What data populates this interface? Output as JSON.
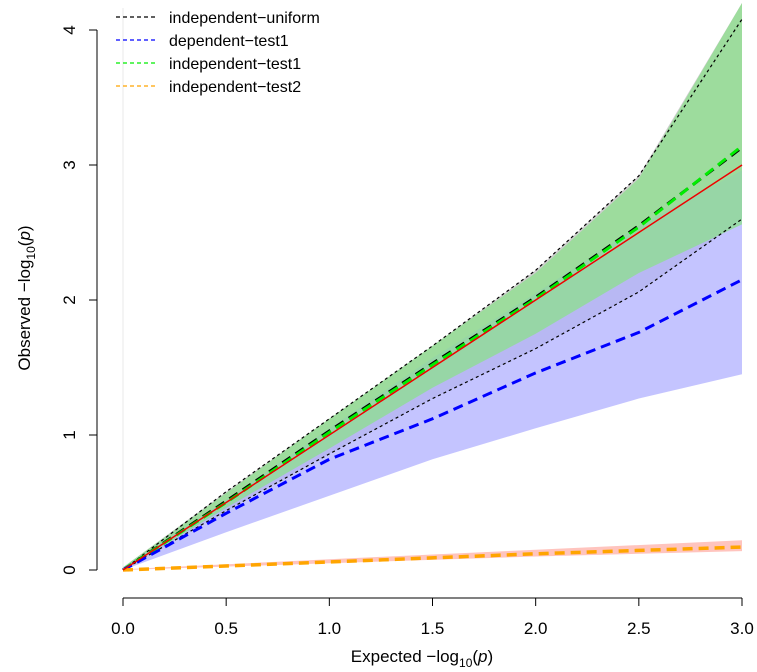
{
  "chart_data": {
    "type": "line",
    "title": "",
    "xlabel": {
      "prefix": "Expected  −log",
      "sub": "10",
      "open": "(",
      "var": "p",
      "close": ")"
    },
    "ylabel": {
      "prefix": "Observed  −log",
      "sub": "10",
      "open": "(",
      "var": "p",
      "close": ")"
    },
    "xlim": [
      0,
      3.0
    ],
    "ylim": [
      0,
      4.1
    ],
    "xticks": [
      0.0,
      0.5,
      1.0,
      1.5,
      2.0,
      2.5,
      3.0
    ],
    "xtick_labels": [
      "0.0",
      "0.5",
      "1.0",
      "1.5",
      "2.0",
      "2.5",
      "3.0"
    ],
    "yticks": [
      0,
      1,
      2,
      3,
      4
    ],
    "ytick_labels": [
      "0",
      "1",
      "2",
      "3",
      "4"
    ],
    "grid": false,
    "legend_position": "top-left",
    "legend": [
      {
        "label": "independent−uniform",
        "color": "#000000"
      },
      {
        "label": "dependent−test1",
        "color": "#0000ff"
      },
      {
        "label": "independent−test1",
        "color": "#00ee00"
      },
      {
        "label": "independent−test2",
        "color": "#ffa500"
      }
    ],
    "bands": [
      {
        "name": "band-independent-uniform",
        "color": "#bebebe",
        "x": [
          0,
          0.5,
          1.0,
          1.5,
          2.0,
          2.5,
          3.0
        ],
        "upper": [
          0.02,
          0.58,
          1.12,
          1.66,
          2.22,
          2.92,
          4.2
        ],
        "lower": [
          0,
          0.44,
          0.86,
          1.27,
          1.64,
          2.06,
          2.6
        ]
      },
      {
        "name": "band-dependent-test1",
        "color": "#b0b0ff",
        "x": [
          0,
          0.5,
          1.0,
          1.5,
          2.0,
          2.5,
          3.0
        ],
        "upper": [
          0.02,
          0.52,
          1.05,
          1.57,
          2.05,
          2.55,
          2.96
        ],
        "lower": [
          0,
          0.28,
          0.55,
          0.82,
          1.05,
          1.27,
          1.45
        ]
      },
      {
        "name": "band-independent-test1",
        "color": "#8ce08c",
        "x": [
          0,
          0.5,
          1.0,
          1.5,
          2.0,
          2.5,
          3.0
        ],
        "upper": [
          0.02,
          0.57,
          1.12,
          1.66,
          2.2,
          2.9,
          4.2
        ],
        "lower": [
          0,
          0.46,
          0.9,
          1.35,
          1.75,
          2.2,
          2.56
        ]
      },
      {
        "name": "band-independent-test2",
        "color": "#ffb0a8",
        "x": [
          0,
          1.0,
          2.0,
          3.0
        ],
        "upper": [
          0.005,
          0.08,
          0.15,
          0.22
        ],
        "lower": [
          0,
          0.05,
          0.1,
          0.14
        ]
      }
    ],
    "series": [
      {
        "name": "independent−uniform",
        "color": "#000000",
        "dash": "3,3",
        "width": 1.2,
        "x": [
          0,
          0.5,
          1.0,
          1.5,
          2.0,
          2.5,
          3.0
        ],
        "y": [
          0,
          0.58,
          1.12,
          1.66,
          2.22,
          2.92,
          4.08
        ]
      },
      {
        "name": "independent−uniform",
        "color": "#000000",
        "dash": "3,3",
        "width": 1.2,
        "x": [
          0,
          0.5,
          1.0,
          1.5,
          2.0,
          2.5,
          3.0
        ],
        "y": [
          0,
          0.44,
          0.86,
          1.27,
          1.64,
          2.06,
          2.6
        ]
      },
      {
        "name": "independent−uniform",
        "color": "#000000",
        "dash": "10,6",
        "width": 3,
        "x": [
          0,
          0.5,
          1.0,
          1.5,
          2.0,
          2.5,
          3.0
        ],
        "y": [
          0,
          0.51,
          1.03,
          1.53,
          2.02,
          2.55,
          3.13
        ]
      },
      {
        "name": "independent−test1",
        "color": "#00ee00",
        "dash": "10,6",
        "width": 3,
        "x": [
          0,
          0.5,
          1.0,
          1.5,
          2.0,
          2.5,
          3.0
        ],
        "y": [
          0,
          0.5,
          1.02,
          1.52,
          2.01,
          2.54,
          3.14
        ]
      },
      {
        "name": "dependent−test1",
        "color": "#0000ff",
        "dash": "10,6",
        "width": 3,
        "x": [
          0,
          0.5,
          1.0,
          1.5,
          2.0,
          2.5,
          3.0
        ],
        "y": [
          0,
          0.42,
          0.82,
          1.12,
          1.46,
          1.76,
          2.15
        ]
      },
      {
        "name": "independent−test2",
        "color": "#ffa500",
        "dash": "10,6",
        "width": 3.5,
        "x": [
          0,
          1.0,
          2.0,
          3.0
        ],
        "y": [
          0,
          0.06,
          0.12,
          0.17
        ]
      },
      {
        "name": "identity",
        "color": "#ee0000",
        "dash": "",
        "width": 1.5,
        "x": [
          0,
          3.0
        ],
        "y": [
          0,
          3.0
        ]
      }
    ]
  }
}
